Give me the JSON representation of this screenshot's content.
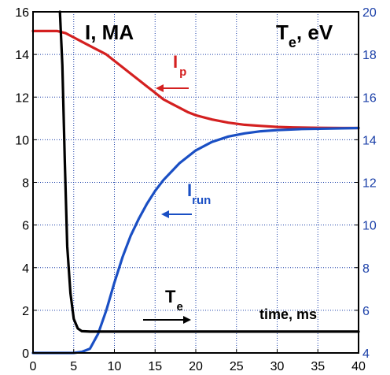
{
  "chart_data": {
    "type": "line",
    "title": "",
    "xlabel": "time, ms",
    "ylabel_left": "I, MA",
    "ylabel_right_main": "T",
    "ylabel_right_sub": "e",
    "ylabel_right_unit": ", eV",
    "xlim": [
      0,
      40
    ],
    "ylim_left": [
      0,
      16
    ],
    "ylim_right": [
      4,
      20
    ],
    "xticks": [
      "0",
      "5",
      "10",
      "15",
      "20",
      "25",
      "30",
      "35",
      "40"
    ],
    "yticks_left": [
      "0",
      "2",
      "4",
      "6",
      "8",
      "10",
      "12",
      "14",
      "16"
    ],
    "yticks_right": [
      "4",
      "6",
      "8",
      "10",
      "12",
      "14",
      "16",
      "18",
      "20"
    ],
    "grid": true,
    "colors": {
      "ip": "#d42020",
      "irun": "#1a4fc4",
      "te": "#000000",
      "axis_right": "#1a3fa8"
    },
    "annotations": {
      "ip": {
        "main": "I",
        "sub": "p"
      },
      "irun": {
        "main": "I",
        "sub": "run"
      },
      "te": {
        "main": "T",
        "sub": "e"
      }
    },
    "series": [
      {
        "name": "I_p",
        "axis": "left",
        "x": [
          0,
          3,
          4,
          5,
          6,
          7,
          8,
          9,
          10,
          11,
          12,
          13,
          14,
          15,
          16,
          17,
          18,
          19,
          20,
          22,
          24,
          26,
          28,
          30,
          32,
          35,
          38,
          40
        ],
        "y": [
          15.1,
          15.1,
          15.0,
          14.8,
          14.6,
          14.4,
          14.2,
          14.0,
          13.7,
          13.4,
          13.1,
          12.8,
          12.5,
          12.2,
          11.9,
          11.7,
          11.5,
          11.3,
          11.15,
          10.95,
          10.8,
          10.7,
          10.65,
          10.6,
          10.58,
          10.56,
          10.55,
          10.55
        ]
      },
      {
        "name": "I_run",
        "axis": "left",
        "x": [
          0,
          5,
          6,
          7,
          8,
          9,
          10,
          11,
          12,
          13,
          14,
          15,
          16,
          18,
          20,
          22,
          24,
          26,
          28,
          30,
          33,
          36,
          40
        ],
        "y": [
          0,
          0,
          0.05,
          0.2,
          0.9,
          2.0,
          3.3,
          4.5,
          5.5,
          6.3,
          7.0,
          7.6,
          8.1,
          8.9,
          9.5,
          9.9,
          10.15,
          10.3,
          10.4,
          10.45,
          10.5,
          10.52,
          10.55
        ]
      },
      {
        "name": "T_e",
        "axis": "right",
        "x": [
          3.3,
          3.6,
          3.9,
          4.2,
          4.6,
          5.0,
          5.5,
          6.0,
          7.0,
          10,
          20,
          30,
          40
        ],
        "y": [
          20,
          17.5,
          13,
          9,
          6.8,
          5.6,
          5.15,
          5.02,
          5.0,
          5.0,
          5.0,
          5.0,
          5.0
        ]
      }
    ]
  }
}
